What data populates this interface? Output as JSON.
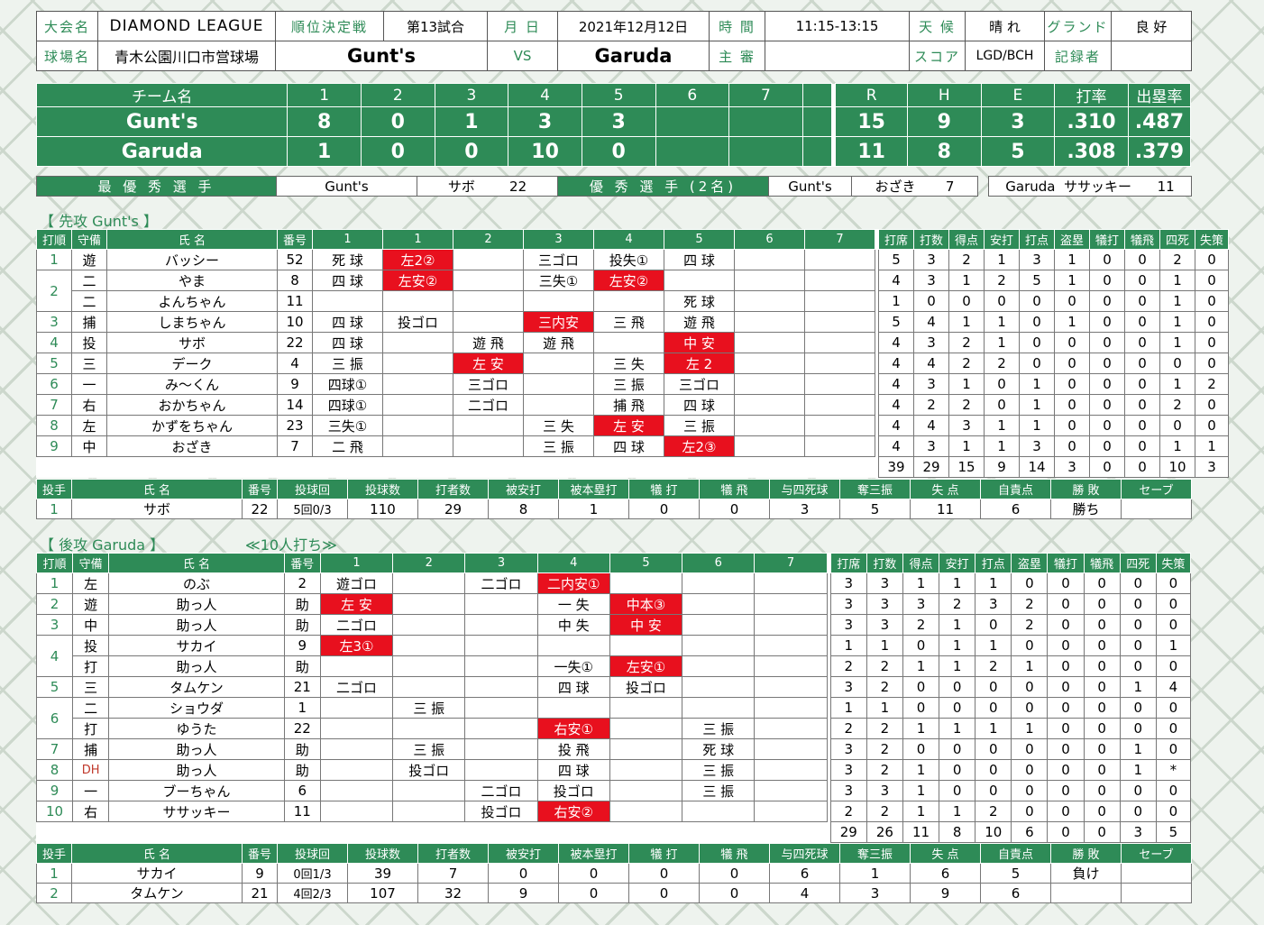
{
  "info": {
    "league_label": "大会名",
    "league": "DIAMOND LEAGUE",
    "type_label": "順位決定戦",
    "match": "第13試合",
    "date_label": "月 日",
    "date": "2021年12月12日",
    "time_label": "時 間",
    "time": "11:15-13:15",
    "weather_label": "天 候",
    "weather": "晴 れ",
    "ground_label": "グランド",
    "ground": "良 好",
    "venue_label": "球場名",
    "venue": "青木公園川口市営球場",
    "team1": "Gunt's",
    "vs": "VS",
    "team2": "Garuda",
    "umpire_label": "主 審",
    "umpire": "",
    "score_label": "スコア",
    "scorer": "LGD/BCH",
    "recorder_label": "記録者",
    "recorder": ""
  },
  "scoreboard": {
    "headers": [
      "チーム名",
      "1",
      "2",
      "3",
      "4",
      "5",
      "6",
      "7",
      "R",
      "H",
      "E",
      "打率",
      "出塁率"
    ],
    "rows": [
      {
        "team": "Gunt's",
        "innings": [
          "8",
          "0",
          "1",
          "3",
          "3",
          "",
          ""
        ],
        "r": "15",
        "h": "9",
        "e": "3",
        "avg": ".310",
        "obp": ".487"
      },
      {
        "team": "Garuda",
        "innings": [
          "1",
          "0",
          "0",
          "10",
          "0",
          "",
          ""
        ],
        "r": "11",
        "h": "8",
        "e": "5",
        "avg": ".308",
        "obp": ".379"
      }
    ]
  },
  "awards": {
    "mvp_label": "最 優 秀 選 手",
    "mvp_team": "Gunt's",
    "mvp_name": "サボ",
    "mvp_no": "22",
    "excellent_label": "優 秀 選 手 (2名)",
    "ex1_team": "Gunt's",
    "ex1_name": "おざき",
    "ex1_no": "7",
    "ex2_team": "Garuda",
    "ex2_name": "ササッキー",
    "ex2_no": "11"
  },
  "top_title": "【 先攻 Gunt's 】",
  "bottom_title": "【 後攻 Garuda 】",
  "bottom_note": "≪10人打ち≫",
  "bat_headers": [
    "打順",
    "守備",
    "氏 名",
    "番号",
    "1",
    "1",
    "2",
    "3",
    "4",
    "5",
    "6",
    "7",
    "打席",
    "打数",
    "得点",
    "安打",
    "打点",
    "盗塁",
    "犠打",
    "犠飛",
    "四死",
    "失策"
  ],
  "bat_headers2": [
    "打順",
    "守備",
    "氏 名",
    "番号",
    "1",
    "2",
    "3",
    "4",
    "5",
    "6",
    "7",
    "打席",
    "打数",
    "得点",
    "安打",
    "打点",
    "盗塁",
    "犠打",
    "犠飛",
    "四死",
    "失策"
  ],
  "top_batting": [
    {
      "order": "1",
      "pos": "遊",
      "name": "バッシー",
      "no": "52",
      "ab": [
        {
          "t": "死 球"
        },
        {
          "t": "左2②",
          "h": 1
        },
        {
          "t": ""
        },
        {
          "t": "三ゴロ"
        },
        {
          "t": "投失①"
        },
        {
          "t": "四 球"
        },
        {
          "t": ""
        },
        {
          "t": ""
        }
      ],
      "stats": [
        "5",
        "3",
        "2",
        "1",
        "3",
        "1",
        "0",
        "0",
        "2",
        "0"
      ]
    },
    {
      "order": "2",
      "pos": "二",
      "name": "やま",
      "no": "8",
      "ab": [
        {
          "t": "四 球"
        },
        {
          "t": "左安②",
          "h": 1
        },
        {
          "t": ""
        },
        {
          "t": "三失①"
        },
        {
          "t": "左安②",
          "h": 1
        },
        {
          "t": ""
        },
        {
          "t": ""
        },
        {
          "t": ""
        }
      ],
      "stats": [
        "4",
        "3",
        "1",
        "2",
        "5",
        "1",
        "0",
        "0",
        "1",
        "0"
      ]
    },
    {
      "order": "",
      "pos": "二",
      "name": "よんちゃん",
      "no": "11",
      "ab": [
        {
          "t": ""
        },
        {
          "t": ""
        },
        {
          "t": ""
        },
        {
          "t": ""
        },
        {
          "t": ""
        },
        {
          "t": "死 球"
        },
        {
          "t": ""
        },
        {
          "t": ""
        }
      ],
      "stats": [
        "1",
        "0",
        "0",
        "0",
        "0",
        "0",
        "0",
        "0",
        "1",
        "0"
      ]
    },
    {
      "order": "3",
      "pos": "捕",
      "name": "しまちゃん",
      "no": "10",
      "ab": [
        {
          "t": "四 球"
        },
        {
          "t": "投ゴロ"
        },
        {
          "t": ""
        },
        {
          "t": "三内安",
          "h": 1
        },
        {
          "t": "三 飛"
        },
        {
          "t": "遊 飛"
        },
        {
          "t": ""
        },
        {
          "t": ""
        }
      ],
      "stats": [
        "5",
        "4",
        "1",
        "1",
        "0",
        "1",
        "0",
        "0",
        "1",
        "0"
      ]
    },
    {
      "order": "4",
      "pos": "投",
      "name": "サボ",
      "no": "22",
      "ab": [
        {
          "t": "四 球"
        },
        {
          "t": ""
        },
        {
          "t": "遊 飛"
        },
        {
          "t": "遊 飛"
        },
        {
          "t": ""
        },
        {
          "t": "中 安",
          "h": 1
        },
        {
          "t": ""
        },
        {
          "t": ""
        }
      ],
      "stats": [
        "4",
        "3",
        "2",
        "1",
        "0",
        "0",
        "0",
        "0",
        "1",
        "0"
      ]
    },
    {
      "order": "5",
      "pos": "三",
      "name": "デーク",
      "no": "4",
      "ab": [
        {
          "t": "三 振"
        },
        {
          "t": ""
        },
        {
          "t": "左 安",
          "h": 1
        },
        {
          "t": ""
        },
        {
          "t": "三 失"
        },
        {
          "t": "左 2",
          "h": 1
        },
        {
          "t": ""
        },
        {
          "t": ""
        }
      ],
      "stats": [
        "4",
        "4",
        "2",
        "2",
        "0",
        "0",
        "0",
        "0",
        "0",
        "0"
      ]
    },
    {
      "order": "6",
      "pos": "一",
      "name": "み～くん",
      "no": "9",
      "ab": [
        {
          "t": "四球①"
        },
        {
          "t": ""
        },
        {
          "t": "三ゴロ"
        },
        {
          "t": ""
        },
        {
          "t": "三 振"
        },
        {
          "t": "三ゴロ"
        },
        {
          "t": ""
        },
        {
          "t": ""
        }
      ],
      "stats": [
        "4",
        "3",
        "1",
        "0",
        "1",
        "0",
        "0",
        "0",
        "1",
        "2"
      ]
    },
    {
      "order": "7",
      "pos": "右",
      "name": "おかちゃん",
      "no": "14",
      "ab": [
        {
          "t": "四球①"
        },
        {
          "t": ""
        },
        {
          "t": "二ゴロ"
        },
        {
          "t": ""
        },
        {
          "t": "捕 飛"
        },
        {
          "t": "四 球"
        },
        {
          "t": ""
        },
        {
          "t": ""
        }
      ],
      "stats": [
        "4",
        "2",
        "2",
        "0",
        "1",
        "0",
        "0",
        "0",
        "2",
        "0"
      ]
    },
    {
      "order": "8",
      "pos": "左",
      "name": "かずをちゃん",
      "no": "23",
      "ab": [
        {
          "t": "三失①"
        },
        {
          "t": ""
        },
        {
          "t": ""
        },
        {
          "t": "三 失"
        },
        {
          "t": "左 安",
          "h": 1
        },
        {
          "t": "三 振"
        },
        {
          "t": ""
        },
        {
          "t": ""
        }
      ],
      "stats": [
        "4",
        "4",
        "3",
        "1",
        "1",
        "0",
        "0",
        "0",
        "0",
        "0"
      ]
    },
    {
      "order": "9",
      "pos": "中",
      "name": "おざき",
      "no": "7",
      "ab": [
        {
          "t": "二 飛"
        },
        {
          "t": ""
        },
        {
          "t": ""
        },
        {
          "t": "三 振"
        },
        {
          "t": "四 球"
        },
        {
          "t": "左2③",
          "h": 1
        },
        {
          "t": ""
        },
        {
          "t": ""
        }
      ],
      "stats": [
        "4",
        "3",
        "1",
        "1",
        "3",
        "0",
        "0",
        "0",
        "1",
        "1"
      ]
    }
  ],
  "top_totals": [
    "39",
    "29",
    "15",
    "9",
    "14",
    "3",
    "0",
    "0",
    "10",
    "3"
  ],
  "pit_headers": [
    "投手",
    "氏 名",
    "番号",
    "投球回",
    "投球数",
    "打者数",
    "被安打",
    "被本塁打",
    "犠 打",
    "犠 飛",
    "与四死球",
    "奪三振",
    "失 点",
    "自責点",
    "勝 敗",
    "セーブ"
  ],
  "top_pitching": [
    {
      "order": "1",
      "name": "サボ",
      "no": "22",
      "ip": "5回0/3",
      "np": "110",
      "bf": "29",
      "h": "8",
      "hr": "1",
      "sh": "0",
      "sf": "0",
      "bb": "3",
      "so": "5",
      "r": "11",
      "er": "6",
      "wl": "勝ち",
      "sv": ""
    }
  ],
  "bottom_batting": [
    {
      "order": "1",
      "pos": "左",
      "name": "のぶ",
      "no": "2",
      "ab": [
        {
          "t": "遊ゴロ"
        },
        {
          "t": ""
        },
        {
          "t": "二ゴロ"
        },
        {
          "t": "二内安①",
          "h": 1
        },
        {
          "t": ""
        },
        {
          "t": ""
        },
        {
          "t": ""
        }
      ],
      "stats": [
        "3",
        "3",
        "1",
        "1",
        "1",
        "0",
        "0",
        "0",
        "0",
        "0"
      ]
    },
    {
      "order": "2",
      "pos": "遊",
      "name": "助っ人",
      "no": "助",
      "ab": [
        {
          "t": "左 安",
          "h": 1
        },
        {
          "t": ""
        },
        {
          "t": ""
        },
        {
          "t": "一 失"
        },
        {
          "t": "中本③",
          "h": 1
        },
        {
          "t": ""
        },
        {
          "t": ""
        }
      ],
      "stats": [
        "3",
        "3",
        "3",
        "2",
        "3",
        "2",
        "0",
        "0",
        "0",
        "0"
      ]
    },
    {
      "order": "3",
      "pos": "中",
      "name": "助っ人",
      "no": "助",
      "ab": [
        {
          "t": "二ゴロ"
        },
        {
          "t": ""
        },
        {
          "t": ""
        },
        {
          "t": "中 失"
        },
        {
          "t": "中 安",
          "h": 1
        },
        {
          "t": ""
        },
        {
          "t": ""
        }
      ],
      "stats": [
        "3",
        "3",
        "2",
        "1",
        "0",
        "2",
        "0",
        "0",
        "0",
        "0"
      ]
    },
    {
      "order": "4",
      "pos": "投",
      "name": "サカイ",
      "no": "9",
      "ab": [
        {
          "t": "左3①",
          "h": 1
        },
        {
          "t": ""
        },
        {
          "t": ""
        },
        {
          "t": ""
        },
        {
          "t": ""
        },
        {
          "t": ""
        },
        {
          "t": ""
        }
      ],
      "stats": [
        "1",
        "1",
        "0",
        "1",
        "1",
        "0",
        "0",
        "0",
        "0",
        "1"
      ]
    },
    {
      "order": "",
      "pos": "打",
      "name": "助っ人",
      "no": "助",
      "ab": [
        {
          "t": ""
        },
        {
          "t": ""
        },
        {
          "t": ""
        },
        {
          "t": "一失①"
        },
        {
          "t": "左安①",
          "h": 1
        },
        {
          "t": ""
        },
        {
          "t": ""
        }
      ],
      "stats": [
        "2",
        "2",
        "1",
        "1",
        "2",
        "1",
        "0",
        "0",
        "0",
        "0"
      ]
    },
    {
      "order": "5",
      "pos": "三",
      "name": "タムケン",
      "no": "21",
      "ab": [
        {
          "t": "二ゴロ"
        },
        {
          "t": ""
        },
        {
          "t": ""
        },
        {
          "t": "四 球"
        },
        {
          "t": "投ゴロ"
        },
        {
          "t": ""
        },
        {
          "t": ""
        }
      ],
      "stats": [
        "3",
        "2",
        "0",
        "0",
        "0",
        "0",
        "0",
        "0",
        "1",
        "4"
      ]
    },
    {
      "order": "6",
      "pos": "二",
      "name": "ショウダ",
      "no": "1",
      "ab": [
        {
          "t": ""
        },
        {
          "t": "三 振"
        },
        {
          "t": ""
        },
        {
          "t": ""
        },
        {
          "t": ""
        },
        {
          "t": ""
        },
        {
          "t": ""
        }
      ],
      "stats": [
        "1",
        "1",
        "0",
        "0",
        "0",
        "0",
        "0",
        "0",
        "0",
        "0"
      ]
    },
    {
      "order": "",
      "pos": "打",
      "name": "ゆうた",
      "no": "22",
      "ab": [
        {
          "t": ""
        },
        {
          "t": ""
        },
        {
          "t": ""
        },
        {
          "t": "右安①",
          "h": 1
        },
        {
          "t": ""
        },
        {
          "t": "三 振"
        },
        {
          "t": ""
        }
      ],
      "stats": [
        "2",
        "2",
        "1",
        "1",
        "1",
        "1",
        "0",
        "0",
        "0",
        "0"
      ]
    },
    {
      "order": "7",
      "pos": "捕",
      "name": "助っ人",
      "no": "助",
      "ab": [
        {
          "t": ""
        },
        {
          "t": "三 振"
        },
        {
          "t": ""
        },
        {
          "t": "投 飛"
        },
        {
          "t": ""
        },
        {
          "t": "死 球"
        },
        {
          "t": ""
        }
      ],
      "stats": [
        "3",
        "2",
        "0",
        "0",
        "0",
        "0",
        "0",
        "0",
        "1",
        "0"
      ]
    },
    {
      "order": "8",
      "pos": "DH",
      "name": "助っ人",
      "no": "助",
      "ab": [
        {
          "t": ""
        },
        {
          "t": "投ゴロ"
        },
        {
          "t": ""
        },
        {
          "t": "四 球"
        },
        {
          "t": ""
        },
        {
          "t": "三 振"
        },
        {
          "t": ""
        }
      ],
      "stats": [
        "3",
        "2",
        "1",
        "0",
        "0",
        "0",
        "0",
        "0",
        "1",
        "*"
      ]
    },
    {
      "order": "9",
      "pos": "一",
      "name": "ブーちゃん",
      "no": "6",
      "ab": [
        {
          "t": ""
        },
        {
          "t": ""
        },
        {
          "t": "二ゴロ"
        },
        {
          "t": "投ゴロ"
        },
        {
          "t": ""
        },
        {
          "t": "三 振"
        },
        {
          "t": ""
        }
      ],
      "stats": [
        "3",
        "3",
        "1",
        "0",
        "0",
        "0",
        "0",
        "0",
        "0",
        "0"
      ]
    },
    {
      "order": "10",
      "pos": "右",
      "name": "ササッキー",
      "no": "11",
      "ab": [
        {
          "t": ""
        },
        {
          "t": ""
        },
        {
          "t": "投ゴロ"
        },
        {
          "t": "右安②",
          "h": 1
        },
        {
          "t": ""
        },
        {
          "t": ""
        },
        {
          "t": ""
        }
      ],
      "stats": [
        "2",
        "2",
        "1",
        "1",
        "2",
        "0",
        "0",
        "0",
        "0",
        "0"
      ]
    }
  ],
  "bottom_totals": [
    "29",
    "26",
    "11",
    "8",
    "10",
    "6",
    "0",
    "0",
    "3",
    "5"
  ],
  "bottom_pitching": [
    {
      "order": "1",
      "name": "サカイ",
      "no": "9",
      "ip": "0回1/3",
      "np": "39",
      "bf": "7",
      "h": "0",
      "hr": "0",
      "sh": "0",
      "sf": "0",
      "bb": "6",
      "so": "1",
      "r": "6",
      "er": "5",
      "wl": "負け",
      "sv": ""
    },
    {
      "order": "2",
      "name": "タムケン",
      "no": "21",
      "ip": "4回2/3",
      "np": "107",
      "bf": "32",
      "h": "9",
      "hr": "0",
      "sh": "0",
      "sf": "0",
      "bb": "4",
      "so": "3",
      "r": "9",
      "er": "6",
      "wl": "",
      "sv": ""
    }
  ]
}
